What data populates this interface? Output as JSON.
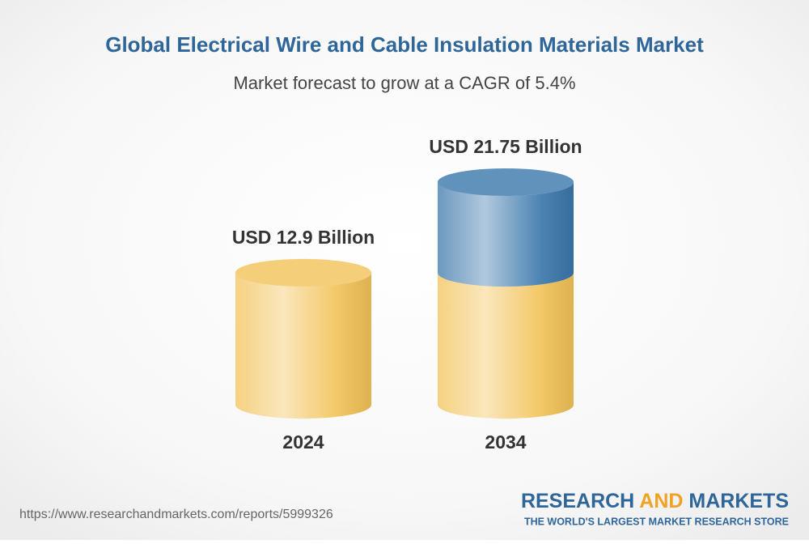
{
  "chart_data": {
    "type": "cylinder",
    "title": "Global Electrical Wire and Cable Insulation Materials Market",
    "subtitle": "Market forecast to grow at a CAGR of 5.4%",
    "categories": [
      "2024",
      "2034"
    ],
    "values": [
      12.9,
      21.75
    ],
    "value_labels": [
      "USD 12.9 Billion",
      "USD 21.75 Billion"
    ],
    "color": "#f2c257",
    "growth_color": "#3a77ab"
  },
  "footer": {
    "url": "https://www.researchandmarkets.com/reports/5999326",
    "brand": {
      "part1": "RESEARCH",
      "part2": "AND",
      "part3": "MARKETS",
      "tagline": "THE WORLD'S LARGEST MARKET RESEARCH STORE"
    }
  }
}
